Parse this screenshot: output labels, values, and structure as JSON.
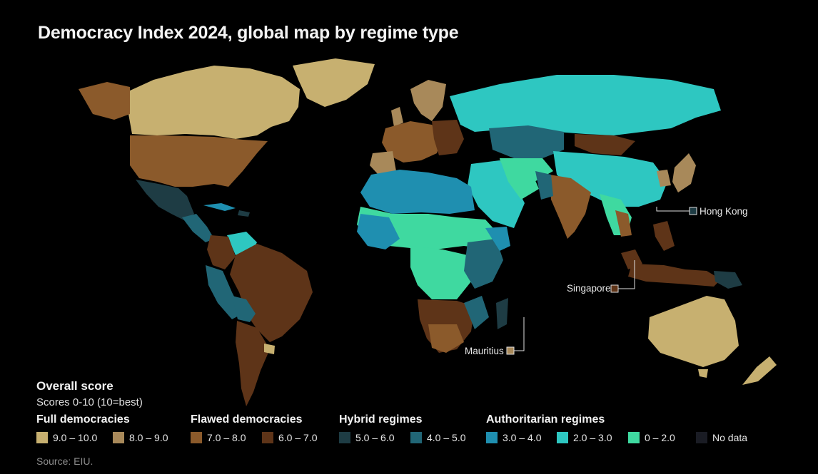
{
  "title": "Democracy Index 2024, global map by regime type",
  "callouts": {
    "hong_kong": "Hong Kong",
    "singapore": "Singapore",
    "mauritius": "Mauritius"
  },
  "legend": {
    "title": "Overall score",
    "subtitle": "Scores 0-10 (10=best)",
    "groups": [
      {
        "name": "Full democracies",
        "items": [
          {
            "label": "9.0 – 10.0",
            "color": "#c7b070"
          },
          {
            "label": "8.0 – 9.0",
            "color": "#a8895a"
          }
        ]
      },
      {
        "name": "Flawed democracies",
        "items": [
          {
            "label": "7.0 – 8.0",
            "color": "#8b5a2b"
          },
          {
            "label": "6.0 – 7.0",
            "color": "#5e3418"
          }
        ]
      },
      {
        "name": "Hybrid regimes",
        "items": [
          {
            "label": "5.0 – 6.0",
            "color": "#1e3c44"
          },
          {
            "label": "4.0 – 5.0",
            "color": "#216676"
          }
        ]
      },
      {
        "name": "Authoritarian regimes",
        "items": [
          {
            "label": "3.0 – 4.0",
            "color": "#1f8fb0"
          },
          {
            "label": "2.0 – 3.0",
            "color": "#2ec7c1"
          },
          {
            "label": "0 – 2.0",
            "color": "#3fd9a0"
          },
          {
            "label": "No data",
            "color": "#1a1c24"
          }
        ]
      }
    ]
  },
  "source": "Source: EIU."
}
